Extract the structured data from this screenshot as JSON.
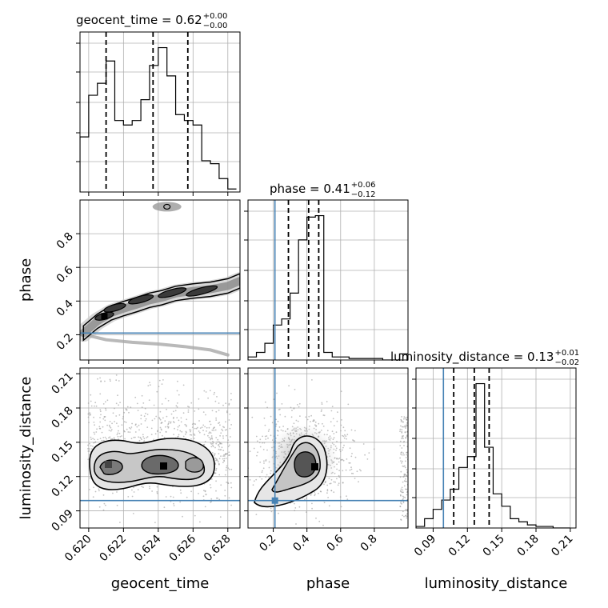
{
  "chart_data": {
    "type": "corner",
    "parameters": [
      "geocent_time",
      "phase",
      "luminosity_distance"
    ],
    "truths": {
      "geocent_time": null,
      "phase": 0.21,
      "luminosity_distance": 0.099
    },
    "colors": {
      "truth": "#4682b4",
      "contour": "#000000",
      "grid": "#b0b0b0"
    },
    "marginals": [
      {
        "parameter": "geocent_time",
        "title": "geocent_time = 0.62",
        "title_plus": "+0.00",
        "title_minus": "−0.00",
        "xlim": [
          0.6195,
          0.6287
        ],
        "quantiles": [
          0.621,
          0.6237,
          0.6257
        ],
        "bin_edges": [
          0.6195,
          0.62,
          0.6205,
          0.621,
          0.6215,
          0.622,
          0.6225,
          0.623,
          0.6235,
          0.624,
          0.6245,
          0.625,
          0.6255,
          0.626,
          0.6265,
          0.627,
          0.6275,
          0.628,
          0.6285
        ],
        "density": [
          0.37,
          0.65,
          0.73,
          0.88,
          0.48,
          0.45,
          0.48,
          0.62,
          0.85,
          0.97,
          0.78,
          0.52,
          0.48,
          0.45,
          0.21,
          0.19,
          0.09,
          0.02
        ]
      },
      {
        "parameter": "phase",
        "title": "phase = 0.41",
        "title_plus": "+0.06",
        "title_minus": "−0.12",
        "xlim": [
          0.05,
          1.0
        ],
        "quantiles": [
          0.29,
          0.41,
          0.47
        ],
        "bin_edges": [
          0.05,
          0.1,
          0.15,
          0.2,
          0.25,
          0.3,
          0.35,
          0.4,
          0.45,
          0.5,
          0.55,
          0.6,
          0.65,
          0.7,
          0.75,
          0.8,
          0.85,
          0.9,
          0.95,
          1.0
        ],
        "density": [
          0.02,
          0.05,
          0.11,
          0.23,
          0.27,
          0.44,
          0.79,
          0.94,
          0.95,
          0.05,
          0.02,
          0.02,
          0.01,
          0.01,
          0.01,
          0.01,
          0.0,
          0.0,
          0.04
        ]
      },
      {
        "parameter": "luminosity_distance",
        "title": "luminosity_distance = 0.13",
        "title_plus": "+0.01",
        "title_minus": "−0.02",
        "xlim": [
          0.075,
          0.215
        ],
        "quantiles": [
          0.108,
          0.126,
          0.139
        ],
        "bin_edges": [
          0.075,
          0.0825,
          0.09,
          0.0975,
          0.105,
          0.1125,
          0.12,
          0.1275,
          0.135,
          0.1425,
          0.15,
          0.1575,
          0.165,
          0.1725,
          0.18,
          0.1875,
          0.195,
          0.2025,
          0.21
        ],
        "density": [
          0.01,
          0.06,
          0.12,
          0.18,
          0.25,
          0.39,
          0.46,
          0.93,
          0.52,
          0.22,
          0.14,
          0.06,
          0.04,
          0.02,
          0.01,
          0.01,
          0.0,
          0.0
        ]
      }
    ],
    "axes": {
      "geocent_time": {
        "xlabel": "geocent_time",
        "ticks": [
          0.62,
          0.622,
          0.624,
          0.626,
          0.628
        ],
        "tick_labels": [
          "0.620",
          "0.622",
          "0.624",
          "0.626",
          "0.628"
        ]
      },
      "phase": {
        "xlabel": "phase",
        "ylabel": "phase",
        "lim": [
          0.05,
          1.0
        ],
        "ticks": [
          0.2,
          0.4,
          0.6,
          0.8
        ],
        "tick_labels": [
          "0.2",
          "0.4",
          "0.6",
          "0.8"
        ]
      },
      "luminosity_distance": {
        "xlabel": "luminosity_distance",
        "ylabel": "luminosity_distance",
        "lim": [
          0.075,
          0.215
        ],
        "ticks": [
          0.09,
          0.12,
          0.15,
          0.18,
          0.21
        ],
        "tick_labels": [
          "0.09",
          "0.12",
          "0.15",
          "0.18",
          "0.21"
        ]
      }
    },
    "joint_panels": [
      {
        "x": "geocent_time",
        "y": "phase",
        "modes": [
          [
            0.6209,
            0.31
          ],
          [
            0.6215,
            0.36
          ],
          [
            0.623,
            0.41
          ],
          [
            0.6248,
            0.45
          ],
          [
            0.6265,
            0.46
          ]
        ],
        "ridge": [
          [
            0.6197,
            0.21
          ],
          [
            0.6205,
            0.28
          ],
          [
            0.6213,
            0.33
          ],
          [
            0.622,
            0.355
          ],
          [
            0.6228,
            0.38
          ],
          [
            0.6235,
            0.405
          ],
          [
            0.6242,
            0.42
          ],
          [
            0.625,
            0.445
          ],
          [
            0.626,
            0.46
          ],
          [
            0.627,
            0.47
          ],
          [
            0.628,
            0.49
          ],
          [
            0.6287,
            0.52
          ]
        ],
        "lower_tail": [
          [
            0.6198,
            0.2
          ],
          [
            0.621,
            0.17
          ],
          [
            0.6225,
            0.155
          ],
          [
            0.624,
            0.145
          ],
          [
            0.6255,
            0.13
          ],
          [
            0.627,
            0.11
          ],
          [
            0.628,
            0.08
          ]
        ],
        "upper_blob": [
          0.6245,
          0.96
        ]
      },
      {
        "x": "geocent_time",
        "y": "luminosity_distance",
        "modes": [
          [
            0.6209,
            0.125
          ],
          [
            0.6218,
            0.123
          ],
          [
            0.6235,
            0.128
          ],
          [
            0.6243,
            0.127
          ],
          [
            0.6253,
            0.126
          ]
        ]
      },
      {
        "x": "phase",
        "y": "luminosity_distance",
        "modes": [
          [
            0.43,
            0.127
          ],
          [
            0.38,
            0.12
          ],
          [
            0.21,
            0.099
          ]
        ]
      }
    ]
  }
}
